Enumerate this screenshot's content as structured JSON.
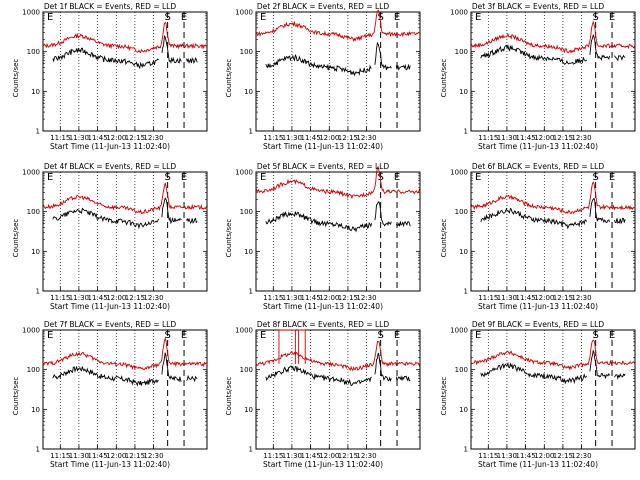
{
  "chart_data": {
    "type": "line",
    "layout": "3x3 grid",
    "ylabel": "Counts/sec",
    "xlabel": "Start Time (11-Jun-13 11:02:40)",
    "yscale": "log",
    "ylim": [
      1,
      1000
    ],
    "ytick_labels": [
      "1",
      "10",
      "100",
      "1000"
    ],
    "x_ticks": [
      "11:15",
      "11:30",
      "11:45",
      "12:00",
      "12:15",
      "12:30"
    ],
    "markers": {
      "start": "S",
      "end": "E"
    },
    "colors": {
      "events": "#000000",
      "lld": "#cc0000",
      "frame": "#000000"
    },
    "panels": [
      {
        "title": "Det 1f BLACK = Events, RED = LLD",
        "events_level": 60,
        "lld_level": 140,
        "lld_spike": false,
        "gap_at_12_13": true
      },
      {
        "title": "Det 2f BLACK = Events, RED = LLD",
        "events_level": 40,
        "lld_level": 280,
        "lld_spike": false,
        "gap_at_12_13": false
      },
      {
        "title": "Det 3f BLACK = Events, RED = LLD",
        "events_level": 70,
        "lld_level": 140,
        "lld_spike": false,
        "gap_at_12_13": true
      },
      {
        "title": "Det 4f BLACK = Events, RED = LLD",
        "events_level": 60,
        "lld_level": 130,
        "lld_spike": false,
        "gap_at_12_13": true
      },
      {
        "title": "Det 5f BLACK = Events, RED = LLD",
        "events_level": 50,
        "lld_level": 320,
        "lld_spike": false,
        "gap_at_12_13": false
      },
      {
        "title": "Det 6f BLACK = Events, RED = LLD",
        "events_level": 60,
        "lld_level": 130,
        "lld_spike": false,
        "gap_at_12_13": true
      },
      {
        "title": "Det 7f BLACK = Events, RED = LLD",
        "events_level": 60,
        "lld_level": 140,
        "lld_spike": false,
        "gap_at_12_13": true
      },
      {
        "title": "Det 8f BLACK = Events, RED = LLD",
        "events_level": 60,
        "lld_level": 140,
        "lld_spike": true,
        "gap_at_12_13": false
      },
      {
        "title": "Det 9f BLACK = Events, RED = LLD",
        "events_level": 70,
        "lld_level": 150,
        "lld_spike": false,
        "gap_at_12_13": true
      }
    ]
  }
}
